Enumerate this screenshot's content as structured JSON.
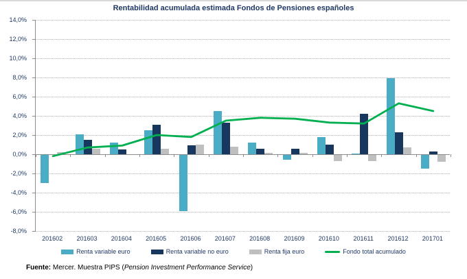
{
  "chart_data": {
    "type": "bar",
    "title": "Rentabilidad acumulada estimada Fondos de Pensiones españoles",
    "categories": [
      "201602",
      "201603",
      "201604",
      "201605",
      "201606",
      "201607",
      "201608",
      "201609",
      "201610",
      "201611",
      "201612",
      "201701"
    ],
    "series": [
      {
        "name": "Renta variable euro",
        "type": "bar",
        "color": "#4BACC6",
        "values": [
          -3.0,
          2.1,
          1.2,
          2.5,
          -5.9,
          4.5,
          1.2,
          -0.6,
          1.8,
          0.1,
          7.9,
          -1.5
        ]
      },
      {
        "name": "Renta variable no euro",
        "type": "bar",
        "color": "#17375E",
        "values": [
          0.0,
          1.5,
          0.5,
          3.1,
          0.9,
          3.3,
          0.6,
          0.6,
          1.0,
          4.2,
          2.3,
          0.3
        ]
      },
      {
        "name": "Renta fija euro",
        "type": "bar",
        "color": "#BFBFBF",
        "values": [
          0.2,
          0.6,
          0.0,
          0.6,
          1.0,
          0.8,
          0.15,
          0.15,
          -0.7,
          -0.7,
          0.7,
          -0.8
        ]
      },
      {
        "name": "Fondo total acumulado",
        "type": "line",
        "color": "#00B050",
        "values": [
          -0.2,
          0.7,
          0.9,
          2.0,
          1.8,
          3.5,
          3.8,
          3.7,
          3.3,
          3.2,
          5.3,
          4.5
        ]
      }
    ],
    "y_axis": {
      "min": -8,
      "max": 14,
      "step": 2,
      "tick_labels": [
        "14,0%",
        "12,0%",
        "10,0%",
        "8,0%",
        "6,0%",
        "4,0%",
        "2,0%",
        "0,0%",
        "-2,0%",
        "-4,0%",
        "-6,0%",
        "-8,0%"
      ]
    },
    "grid": true,
    "legend_position": "bottom"
  },
  "footer": {
    "bold": "Fuente:",
    "normal1": " Mercer. Muestra PIPS (",
    "italic": "Pension Investment Performance Service",
    "normal2": ")"
  }
}
